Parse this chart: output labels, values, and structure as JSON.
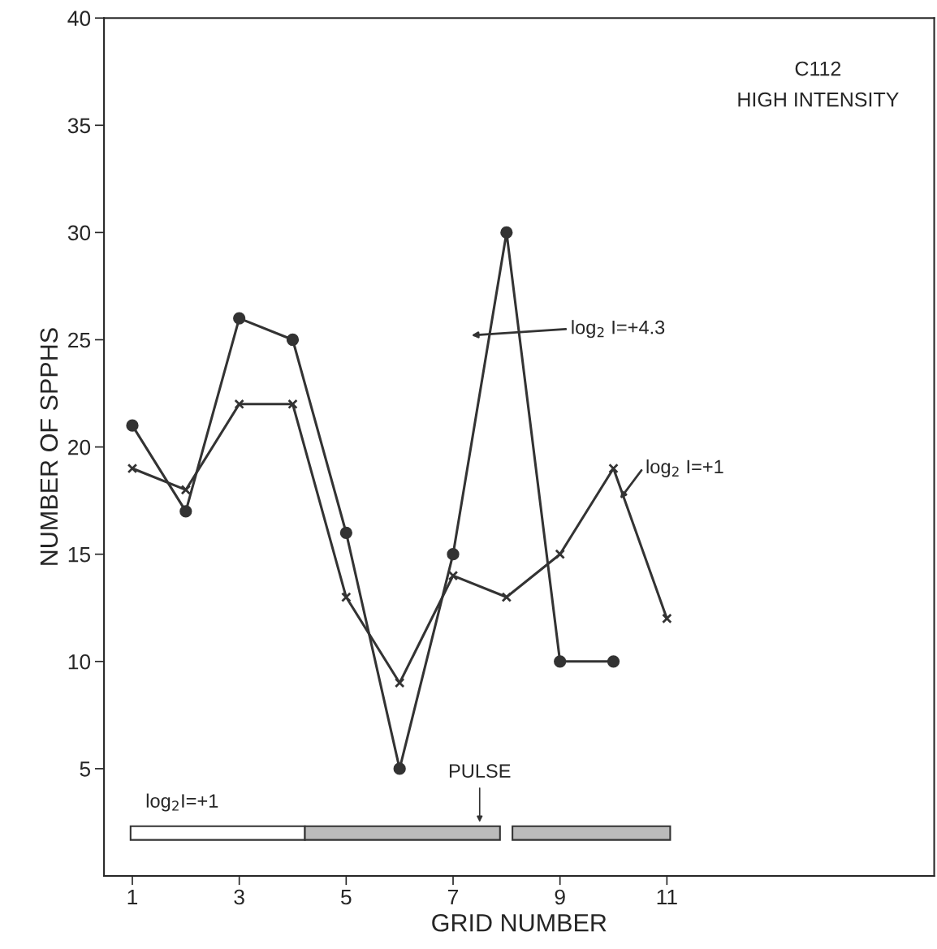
{
  "chart_data": {
    "type": "line",
    "xlabel": "GRID NUMBER",
    "ylabel": "NUMBER OF SPPHS",
    "x": [
      1,
      2,
      3,
      4,
      5,
      6,
      7,
      8,
      9,
      10,
      11
    ],
    "series": [
      {
        "name": "log$_{2}$ I=+4.3",
        "color": "#333333",
        "marker": "circle",
        "values": [
          21,
          17,
          26,
          25,
          16,
          5,
          15,
          30,
          10,
          10,
          null
        ]
      },
      {
        "name": "log$_{2}$ I=+1",
        "color": "#333333",
        "marker": "cross",
        "values": [
          19,
          18,
          22,
          22,
          13,
          9,
          14,
          13,
          15,
          19,
          12
        ]
      }
    ],
    "xlim": [
      0.47,
      16
    ],
    "xticks": [
      1,
      3,
      5,
      7,
      9,
      11
    ],
    "ylim": [
      0,
      40
    ],
    "yticks": [
      5,
      10,
      15,
      20,
      25,
      30,
      35,
      40
    ],
    "grid": false,
    "annotations": [
      "C112",
      "HIGH INTENSITY",
      "log$_{2}$I=+1",
      "PULSE"
    ]
  }
}
